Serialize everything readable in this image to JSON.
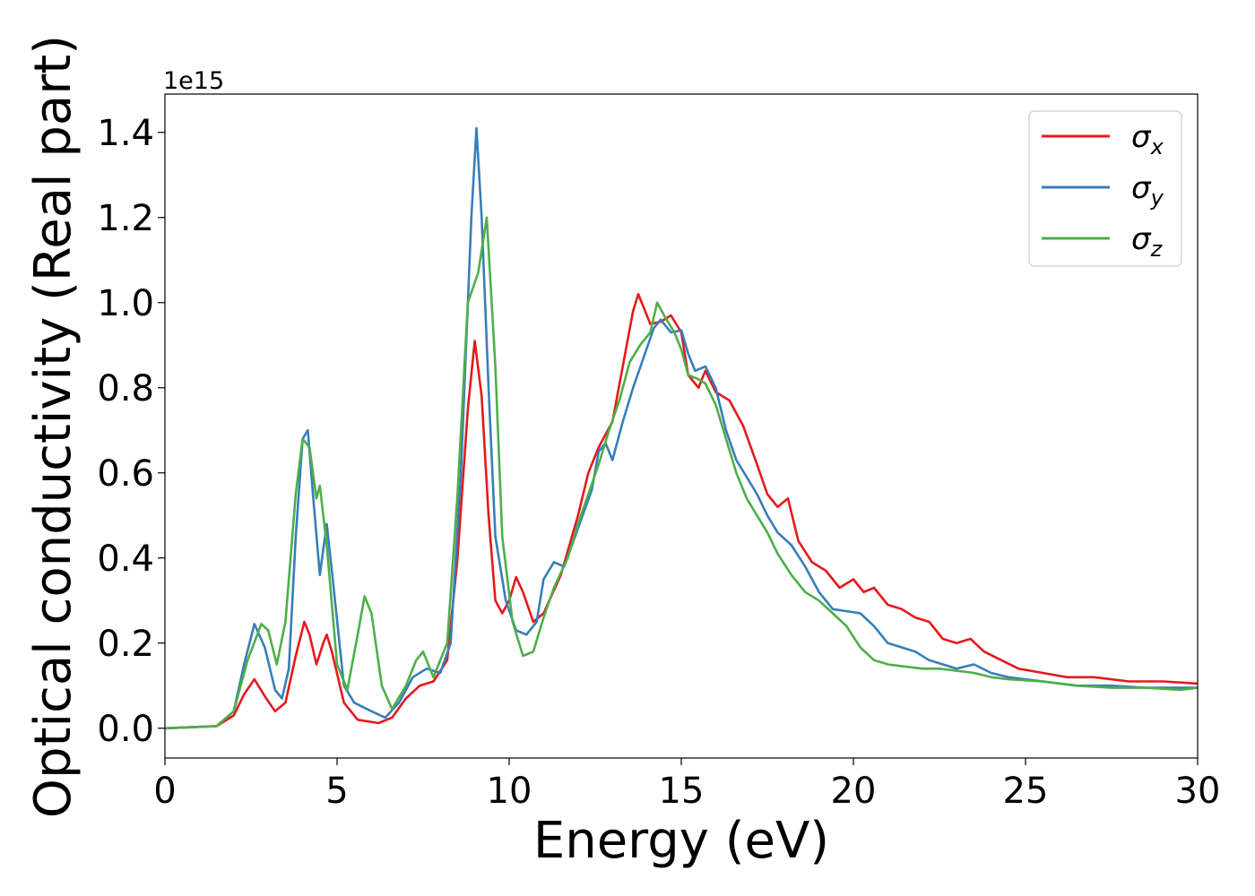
{
  "chart_data": {
    "type": "line",
    "xlabel": "Energy (eV)",
    "ylabel": "Optical conductivity (Real part)",
    "y_offset_label": "1e15",
    "xlim": [
      0,
      30
    ],
    "ylim": [
      -0.07,
      1.49
    ],
    "x_ticks": [
      0,
      5,
      10,
      15,
      20,
      25,
      30
    ],
    "x_tick_labels": [
      "0",
      "5",
      "10",
      "15",
      "20",
      "25",
      "30"
    ],
    "y_ticks": [
      0.0,
      0.2,
      0.4,
      0.6,
      0.8,
      1.0,
      1.2,
      1.4
    ],
    "y_tick_labels": [
      "0.0",
      "0.2",
      "0.4",
      "0.6",
      "0.8",
      "1.0",
      "1.2",
      "1.4"
    ],
    "grid": false,
    "legend_position": "top-right",
    "series": [
      {
        "name": "σx",
        "label_base": "σ",
        "label_sub": "x",
        "color": "#e41a1c",
        "points": [
          [
            0,
            0
          ],
          [
            1.5,
            0.005
          ],
          [
            2.0,
            0.03
          ],
          [
            2.3,
            0.08
          ],
          [
            2.6,
            0.115
          ],
          [
            2.9,
            0.075
          ],
          [
            3.2,
            0.04
          ],
          [
            3.5,
            0.06
          ],
          [
            3.8,
            0.17
          ],
          [
            4.05,
            0.25
          ],
          [
            4.2,
            0.22
          ],
          [
            4.4,
            0.15
          ],
          [
            4.6,
            0.2
          ],
          [
            4.7,
            0.22
          ],
          [
            4.85,
            0.18
          ],
          [
            5.2,
            0.06
          ],
          [
            5.6,
            0.02
          ],
          [
            6.2,
            0.012
          ],
          [
            6.6,
            0.025
          ],
          [
            7.0,
            0.07
          ],
          [
            7.4,
            0.1
          ],
          [
            7.8,
            0.11
          ],
          [
            8.2,
            0.16
          ],
          [
            8.5,
            0.4
          ],
          [
            8.8,
            0.75
          ],
          [
            9.0,
            0.91
          ],
          [
            9.2,
            0.78
          ],
          [
            9.4,
            0.5
          ],
          [
            9.6,
            0.3
          ],
          [
            9.8,
            0.27
          ],
          [
            10.0,
            0.3
          ],
          [
            10.2,
            0.355
          ],
          [
            10.4,
            0.32
          ],
          [
            10.7,
            0.25
          ],
          [
            11.0,
            0.27
          ],
          [
            11.5,
            0.36
          ],
          [
            12.0,
            0.5
          ],
          [
            12.3,
            0.6
          ],
          [
            12.6,
            0.66
          ],
          [
            13.0,
            0.72
          ],
          [
            13.3,
            0.85
          ],
          [
            13.6,
            0.98
          ],
          [
            13.75,
            1.02
          ],
          [
            13.9,
            0.99
          ],
          [
            14.1,
            0.95
          ],
          [
            14.4,
            0.955
          ],
          [
            14.7,
            0.97
          ],
          [
            15.0,
            0.93
          ],
          [
            15.2,
            0.83
          ],
          [
            15.5,
            0.8
          ],
          [
            15.7,
            0.84
          ],
          [
            16.0,
            0.79
          ],
          [
            16.4,
            0.77
          ],
          [
            16.8,
            0.71
          ],
          [
            17.2,
            0.62
          ],
          [
            17.5,
            0.55
          ],
          [
            17.8,
            0.52
          ],
          [
            18.1,
            0.54
          ],
          [
            18.4,
            0.44
          ],
          [
            18.8,
            0.39
          ],
          [
            19.2,
            0.37
          ],
          [
            19.6,
            0.33
          ],
          [
            20.0,
            0.35
          ],
          [
            20.3,
            0.32
          ],
          [
            20.6,
            0.33
          ],
          [
            21.0,
            0.29
          ],
          [
            21.4,
            0.28
          ],
          [
            21.8,
            0.26
          ],
          [
            22.2,
            0.25
          ],
          [
            22.6,
            0.21
          ],
          [
            23.0,
            0.2
          ],
          [
            23.4,
            0.21
          ],
          [
            23.8,
            0.18
          ],
          [
            24.3,
            0.16
          ],
          [
            24.8,
            0.14
          ],
          [
            25.5,
            0.13
          ],
          [
            26.2,
            0.12
          ],
          [
            27.0,
            0.12
          ],
          [
            28.0,
            0.11
          ],
          [
            29.0,
            0.11
          ],
          [
            30.0,
            0.105
          ]
        ]
      },
      {
        "name": "σy",
        "label_base": "σ",
        "label_sub": "y",
        "color": "#377eb8",
        "points": [
          [
            0,
            0
          ],
          [
            1.5,
            0.005
          ],
          [
            2.0,
            0.04
          ],
          [
            2.3,
            0.15
          ],
          [
            2.6,
            0.245
          ],
          [
            2.9,
            0.19
          ],
          [
            3.2,
            0.09
          ],
          [
            3.4,
            0.07
          ],
          [
            3.6,
            0.14
          ],
          [
            3.8,
            0.45
          ],
          [
            4.0,
            0.68
          ],
          [
            4.15,
            0.7
          ],
          [
            4.3,
            0.55
          ],
          [
            4.5,
            0.36
          ],
          [
            4.6,
            0.42
          ],
          [
            4.7,
            0.48
          ],
          [
            4.9,
            0.33
          ],
          [
            5.2,
            0.1
          ],
          [
            5.5,
            0.06
          ],
          [
            6.0,
            0.04
          ],
          [
            6.4,
            0.025
          ],
          [
            6.8,
            0.06
          ],
          [
            7.2,
            0.12
          ],
          [
            7.6,
            0.14
          ],
          [
            8.0,
            0.13
          ],
          [
            8.3,
            0.2
          ],
          [
            8.6,
            0.6
          ],
          [
            8.9,
            1.2
          ],
          [
            9.05,
            1.41
          ],
          [
            9.2,
            1.2
          ],
          [
            9.4,
            0.8
          ],
          [
            9.6,
            0.45
          ],
          [
            9.9,
            0.3
          ],
          [
            10.2,
            0.23
          ],
          [
            10.5,
            0.22
          ],
          [
            10.8,
            0.25
          ],
          [
            11.0,
            0.35
          ],
          [
            11.3,
            0.39
          ],
          [
            11.6,
            0.38
          ],
          [
            12.0,
            0.47
          ],
          [
            12.4,
            0.56
          ],
          [
            12.6,
            0.65
          ],
          [
            12.8,
            0.67
          ],
          [
            13.0,
            0.63
          ],
          [
            13.3,
            0.72
          ],
          [
            13.6,
            0.8
          ],
          [
            13.9,
            0.87
          ],
          [
            14.2,
            0.94
          ],
          [
            14.4,
            0.96
          ],
          [
            14.7,
            0.93
          ],
          [
            15.0,
            0.935
          ],
          [
            15.2,
            0.88
          ],
          [
            15.4,
            0.84
          ],
          [
            15.7,
            0.85
          ],
          [
            16.0,
            0.8
          ],
          [
            16.3,
            0.7
          ],
          [
            16.6,
            0.63
          ],
          [
            16.9,
            0.59
          ],
          [
            17.2,
            0.55
          ],
          [
            17.5,
            0.5
          ],
          [
            17.8,
            0.46
          ],
          [
            18.2,
            0.43
          ],
          [
            18.6,
            0.38
          ],
          [
            19.0,
            0.32
          ],
          [
            19.4,
            0.28
          ],
          [
            19.8,
            0.275
          ],
          [
            20.2,
            0.27
          ],
          [
            20.6,
            0.24
          ],
          [
            21.0,
            0.2
          ],
          [
            21.4,
            0.19
          ],
          [
            21.8,
            0.18
          ],
          [
            22.2,
            0.16
          ],
          [
            22.6,
            0.15
          ],
          [
            23.0,
            0.14
          ],
          [
            23.5,
            0.15
          ],
          [
            24.0,
            0.13
          ],
          [
            24.5,
            0.12
          ],
          [
            25.5,
            0.11
          ],
          [
            26.5,
            0.1
          ],
          [
            27.5,
            0.1
          ],
          [
            28.5,
            0.095
          ],
          [
            30.0,
            0.095
          ]
        ]
      },
      {
        "name": "σz",
        "label_base": "σ",
        "label_sub": "z",
        "color": "#4daf4a",
        "points": [
          [
            0,
            0
          ],
          [
            1.5,
            0.005
          ],
          [
            2.0,
            0.04
          ],
          [
            2.4,
            0.16
          ],
          [
            2.8,
            0.245
          ],
          [
            3.0,
            0.23
          ],
          [
            3.25,
            0.15
          ],
          [
            3.5,
            0.25
          ],
          [
            3.8,
            0.55
          ],
          [
            4.0,
            0.68
          ],
          [
            4.2,
            0.66
          ],
          [
            4.4,
            0.54
          ],
          [
            4.5,
            0.57
          ],
          [
            4.7,
            0.43
          ],
          [
            5.0,
            0.15
          ],
          [
            5.3,
            0.09
          ],
          [
            5.6,
            0.22
          ],
          [
            5.8,
            0.31
          ],
          [
            6.0,
            0.27
          ],
          [
            6.3,
            0.1
          ],
          [
            6.6,
            0.045
          ],
          [
            7.0,
            0.1
          ],
          [
            7.3,
            0.16
          ],
          [
            7.5,
            0.18
          ],
          [
            7.8,
            0.12
          ],
          [
            8.2,
            0.2
          ],
          [
            8.5,
            0.55
          ],
          [
            8.8,
            1.0
          ],
          [
            9.1,
            1.07
          ],
          [
            9.35,
            1.2
          ],
          [
            9.6,
            0.85
          ],
          [
            9.8,
            0.45
          ],
          [
            10.1,
            0.25
          ],
          [
            10.4,
            0.17
          ],
          [
            10.7,
            0.18
          ],
          [
            11.0,
            0.26
          ],
          [
            11.3,
            0.33
          ],
          [
            11.7,
            0.4
          ],
          [
            12.0,
            0.48
          ],
          [
            12.3,
            0.55
          ],
          [
            12.6,
            0.62
          ],
          [
            12.9,
            0.7
          ],
          [
            13.2,
            0.77
          ],
          [
            13.5,
            0.86
          ],
          [
            13.8,
            0.9
          ],
          [
            14.1,
            0.93
          ],
          [
            14.3,
            1.0
          ],
          [
            14.5,
            0.97
          ],
          [
            14.8,
            0.93
          ],
          [
            15.0,
            0.89
          ],
          [
            15.2,
            0.83
          ],
          [
            15.5,
            0.82
          ],
          [
            15.7,
            0.81
          ],
          [
            16.0,
            0.76
          ],
          [
            16.3,
            0.68
          ],
          [
            16.6,
            0.6
          ],
          [
            16.9,
            0.54
          ],
          [
            17.2,
            0.5
          ],
          [
            17.5,
            0.46
          ],
          [
            17.8,
            0.41
          ],
          [
            18.2,
            0.36
          ],
          [
            18.6,
            0.32
          ],
          [
            19.0,
            0.3
          ],
          [
            19.4,
            0.27
          ],
          [
            19.8,
            0.24
          ],
          [
            20.2,
            0.19
          ],
          [
            20.6,
            0.16
          ],
          [
            21.0,
            0.15
          ],
          [
            21.5,
            0.145
          ],
          [
            22.0,
            0.14
          ],
          [
            22.5,
            0.14
          ],
          [
            23.0,
            0.135
          ],
          [
            23.5,
            0.13
          ],
          [
            24.0,
            0.12
          ],
          [
            24.5,
            0.115
          ],
          [
            25.5,
            0.11
          ],
          [
            26.5,
            0.1
          ],
          [
            27.5,
            0.095
          ],
          [
            28.5,
            0.095
          ],
          [
            29.5,
            0.09
          ],
          [
            30.0,
            0.095
          ]
        ]
      }
    ]
  }
}
